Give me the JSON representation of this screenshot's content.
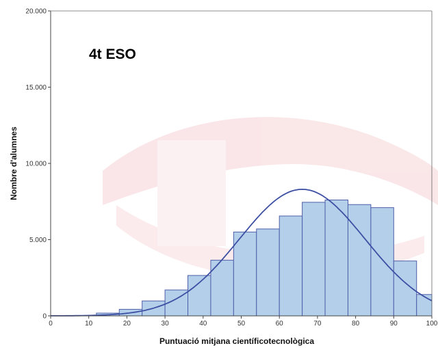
{
  "chart_data": {
    "type": "bar",
    "subtype": "histogram",
    "annotation": "4t ESO",
    "xlabel": "Puntuació mitjana científicotecnològica",
    "ylabel": "Nombre d'alumnes",
    "xlim": [
      0,
      100
    ],
    "ylim": [
      0,
      20000
    ],
    "xticks": [
      0,
      10,
      20,
      30,
      40,
      50,
      60,
      70,
      80,
      90,
      100
    ],
    "xtick_labels": [
      "0",
      "10",
      "20",
      "30",
      "40",
      "50",
      "60",
      "70",
      "80",
      "90",
      "100"
    ],
    "yticks": [
      0,
      5000,
      10000,
      15000,
      20000
    ],
    "ytick_labels": [
      "0",
      "5.000",
      "10.000",
      "15.000",
      "20.000"
    ],
    "bin_width": 6,
    "bins": [
      {
        "start": 0,
        "end": 6,
        "value": 0
      },
      {
        "start": 6,
        "end": 12,
        "value": 20
      },
      {
        "start": 12,
        "end": 18,
        "value": 180
      },
      {
        "start": 18,
        "end": 24,
        "value": 430
      },
      {
        "start": 24,
        "end": 30,
        "value": 980
      },
      {
        "start": 30,
        "end": 36,
        "value": 1700
      },
      {
        "start": 36,
        "end": 42,
        "value": 2650
      },
      {
        "start": 42,
        "end": 48,
        "value": 3650
      },
      {
        "start": 48,
        "end": 54,
        "value": 5500
      },
      {
        "start": 54,
        "end": 60,
        "value": 5700
      },
      {
        "start": 60,
        "end": 66,
        "value": 6550
      },
      {
        "start": 66,
        "end": 72,
        "value": 7450
      },
      {
        "start": 72,
        "end": 78,
        "value": 7600
      },
      {
        "start": 78,
        "end": 84,
        "value": 7300
      },
      {
        "start": 84,
        "end": 90,
        "value": 7100
      },
      {
        "start": 90,
        "end": 96,
        "value": 3600
      },
      {
        "start": 96,
        "end": 100,
        "value": 1400
      }
    ],
    "normal_curve": {
      "mean": 66,
      "sd": 16.5,
      "peak": 8300
    },
    "grid": false,
    "legend": "none"
  },
  "colors": {
    "bar_fill": "#b3cfea",
    "bar_stroke": "#4d5ea8",
    "curve": "#3d4fa3",
    "axis": "#444444",
    "background": "#ffffff",
    "watermark": "#f3c9cc"
  }
}
